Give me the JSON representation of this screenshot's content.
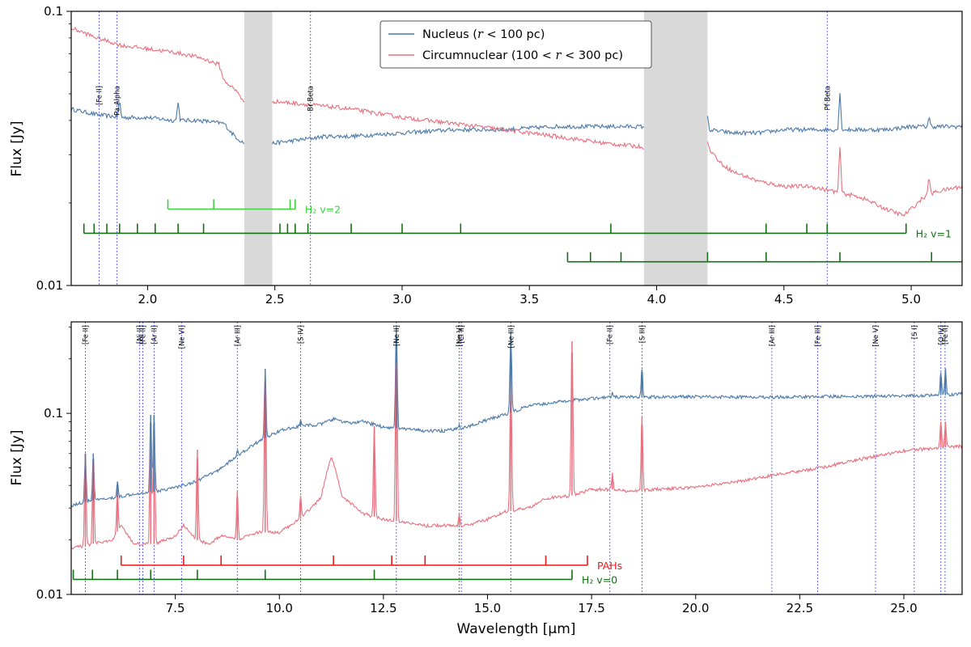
{
  "colors": {
    "nucleus": "#4a79aa",
    "circum": "#e8707f",
    "line_marker": "#3333ff",
    "h2_v2": "#3fd13f",
    "h2_v1": "#157015",
    "h2_v0": "#157015",
    "pahs": "#e81a1a",
    "shade": "#d9d9d9"
  },
  "chart_data": [
    {
      "type": "line",
      "panel": "top",
      "xlim": [
        1.7,
        5.2
      ],
      "ylim": [
        0.01,
        0.1
      ],
      "yscale": "log",
      "xlabel": "",
      "ylabel": "Flux [Jy]",
      "xticks": [
        2.0,
        2.5,
        3.0,
        3.5,
        4.0,
        4.5,
        5.0
      ],
      "xtick_labels": [
        "2.0",
        "2.5",
        "3.0",
        "3.5",
        "4.0",
        "4.5",
        "5.0"
      ],
      "yticks": [
        0.01,
        0.1
      ],
      "ytick_labels": [
        "0.01",
        "0.1"
      ],
      "legend": {
        "position": "top-center",
        "entries": [
          {
            "name_prefix": "Nucleus (",
            "name_math": "r",
            "name_suffix": " < 100 pc)",
            "series": "nucleus"
          },
          {
            "name_prefix": "Circumnuclear (100 < ",
            "name_math": "r",
            "name_suffix": " < 300 pc)",
            "series": "circum"
          }
        ]
      },
      "gaps": [
        [
          2.38,
          2.49
        ],
        [
          3.95,
          4.2
        ]
      ],
      "series": [
        {
          "name": "Nucleus",
          "key": "nucleus",
          "segments": [
            {
              "x": [
                1.7,
                1.8,
                1.9,
                2.0,
                2.1,
                2.2,
                2.3,
                2.33,
                2.36,
                2.38
              ],
              "y": [
                0.044,
                0.042,
                0.041,
                0.041,
                0.04,
                0.04,
                0.039,
                0.036,
                0.034,
                0.033
              ]
            },
            {
              "x": [
                2.49,
                2.6,
                2.7,
                2.8,
                3.0,
                3.2,
                3.4,
                3.6,
                3.8,
                3.95
              ],
              "y": [
                0.033,
                0.034,
                0.035,
                0.035,
                0.036,
                0.037,
                0.037,
                0.038,
                0.038,
                0.038
              ]
            },
            {
              "x": [
                4.2,
                4.3,
                4.4,
                4.5,
                4.6,
                4.7,
                4.8,
                4.9,
                5.0,
                5.1,
                5.2
              ],
              "y": [
                0.037,
                0.036,
                0.036,
                0.037,
                0.037,
                0.037,
                0.037,
                0.037,
                0.038,
                0.038,
                0.038
              ]
            }
          ],
          "peaks": [
            {
              "x": 1.89,
              "y": 0.047
            },
            {
              "x": 2.12,
              "y": 0.047
            },
            {
              "x": 4.2,
              "y": 0.041
            },
            {
              "x": 4.72,
              "y": 0.05
            },
            {
              "x": 5.07,
              "y": 0.041
            }
          ]
        },
        {
          "name": "Circumnuclear",
          "key": "circum",
          "segments": [
            {
              "x": [
                1.7,
                1.8,
                1.9,
                2.0,
                2.1,
                2.2,
                2.28,
                2.3,
                2.33,
                2.36,
                2.38
              ],
              "y": [
                0.087,
                0.08,
                0.075,
                0.073,
                0.071,
                0.068,
                0.064,
                0.056,
                0.053,
                0.05,
                0.046
              ]
            },
            {
              "x": [
                2.49,
                2.6,
                2.7,
                2.8,
                3.0,
                3.2,
                3.4,
                3.6,
                3.8,
                3.95
              ],
              "y": [
                0.047,
                0.046,
                0.045,
                0.044,
                0.041,
                0.039,
                0.037,
                0.035,
                0.033,
                0.032
              ]
            },
            {
              "x": [
                4.2,
                4.25,
                4.3,
                4.4,
                4.5,
                4.6,
                4.7,
                4.8,
                4.9,
                4.97,
                5.0,
                5.05,
                5.1,
                5.2
              ],
              "y": [
                0.032,
                0.028,
                0.026,
                0.024,
                0.023,
                0.023,
                0.022,
                0.021,
                0.019,
                0.018,
                0.019,
                0.021,
                0.022,
                0.023
              ]
            }
          ],
          "peaks": [
            {
              "x": 4.2,
              "y": 0.033
            },
            {
              "x": 4.72,
              "y": 0.032
            },
            {
              "x": 5.07,
              "y": 0.025
            }
          ]
        }
      ],
      "line_markers": [
        {
          "x": 1.81,
          "label": "[Fe II]"
        },
        {
          "x": 1.88,
          "label": "Pa Alpha"
        },
        {
          "x": 2.64,
          "label": "Br Beta"
        },
        {
          "x": 4.67,
          "label": "Pf Beta"
        }
      ],
      "ladders": [
        {
          "label": "H₂ v=2",
          "color_key": "h2_v2",
          "level": 0.019,
          "x_start": 2.08,
          "x_end": 2.58,
          "ticks": [
            2.08,
            2.26,
            2.56,
            2.58
          ]
        },
        {
          "label": "H₂ v=1",
          "color_key": "h2_v1",
          "level": 0.0155,
          "x_start": 1.75,
          "x_end": 4.98,
          "ticks": [
            1.75,
            1.79,
            1.84,
            1.89,
            1.96,
            2.03,
            2.12,
            2.22,
            2.52,
            2.55,
            2.58,
            2.63,
            2.8,
            3.0,
            3.23,
            3.82,
            4.43,
            4.59,
            4.67,
            4.98
          ]
        },
        {
          "label": "",
          "color_key": "h2_v1",
          "level": 0.0122,
          "x_start": 3.65,
          "x_end": 5.2,
          "ticks": [
            3.65,
            3.74,
            3.86,
            4.2,
            4.43,
            4.72,
            5.08
          ]
        }
      ]
    },
    {
      "type": "line",
      "panel": "bottom",
      "xlim": [
        5.0,
        26.4
      ],
      "ylim": [
        0.01,
        0.32
      ],
      "yscale": "log",
      "xlabel": "Wavelength [μm]",
      "ylabel": "Flux [Jy]",
      "xticks": [
        7.5,
        10.0,
        12.5,
        15.0,
        17.5,
        20.0,
        22.5,
        25.0
      ],
      "xtick_labels": [
        "7.5",
        "10.0",
        "12.5",
        "15.0",
        "17.5",
        "20.0",
        "22.5",
        "25.0"
      ],
      "yticks": [
        0.01,
        0.1
      ],
      "ytick_labels": [
        "0.01",
        "0.1"
      ],
      "series": [
        {
          "name": "Nucleus",
          "key": "nucleus",
          "x": [
            5.0,
            5.5,
            6.0,
            6.5,
            7.0,
            7.5,
            8.0,
            8.5,
            9.0,
            9.5,
            10.0,
            10.5,
            11.0,
            11.3,
            11.7,
            12.0,
            12.5,
            13.0,
            13.5,
            14.0,
            14.5,
            15.0,
            15.5,
            16.0,
            17.0,
            18.0,
            19.0,
            20.0,
            21.0,
            22.0,
            23.0,
            24.0,
            25.0,
            26.0,
            26.4
          ],
          "y": [
            0.031,
            0.033,
            0.034,
            0.036,
            0.037,
            0.039,
            0.042,
            0.048,
            0.058,
            0.07,
            0.08,
            0.085,
            0.087,
            0.093,
            0.088,
            0.09,
            0.084,
            0.082,
            0.08,
            0.08,
            0.084,
            0.092,
            0.1,
            0.11,
            0.118,
            0.123,
            0.123,
            0.124,
            0.123,
            0.123,
            0.124,
            0.124,
            0.125,
            0.126,
            0.128
          ]
        },
        {
          "name": "Circumnuclear",
          "key": "circum",
          "x": [
            5.0,
            5.5,
            6.0,
            6.2,
            6.5,
            7.0,
            7.5,
            7.7,
            8.0,
            8.3,
            8.6,
            9.0,
            9.5,
            10.0,
            10.5,
            11.0,
            11.25,
            11.5,
            12.0,
            12.5,
            13.0,
            13.5,
            14.0,
            14.5,
            15.0,
            15.5,
            16.0,
            16.4,
            17.0,
            17.5,
            18.0,
            18.5,
            19.0,
            20.0,
            21.0,
            22.0,
            23.0,
            24.0,
            25.0,
            26.0,
            26.4
          ],
          "y": [
            0.018,
            0.019,
            0.02,
            0.024,
            0.019,
            0.019,
            0.021,
            0.024,
            0.02,
            0.019,
            0.021,
            0.02,
            0.022,
            0.022,
            0.026,
            0.034,
            0.058,
            0.035,
            0.028,
            0.026,
            0.025,
            0.024,
            0.024,
            0.024,
            0.026,
            0.029,
            0.03,
            0.034,
            0.035,
            0.038,
            0.038,
            0.037,
            0.038,
            0.039,
            0.042,
            0.046,
            0.05,
            0.056,
            0.062,
            0.065,
            0.066
          ]
        }
      ],
      "spikes": [
        {
          "x": 5.34,
          "nucleus": 0.06,
          "circum": 0.06
        },
        {
          "x": 5.53,
          "nucleus": 0.06,
          "circum": 0.06
        },
        {
          "x": 6.11,
          "nucleus": 0.042,
          "circum": 0.038
        },
        {
          "x": 6.91,
          "nucleus": 0.098,
          "circum": 0.098
        },
        {
          "x": 6.99,
          "nucleus": 0.098,
          "circum": 0.097
        },
        {
          "x": 8.03,
          "nucleus": 0.043,
          "circum": 0.063
        },
        {
          "x": 8.99,
          "nucleus": 0.062,
          "circum": 0.037
        },
        {
          "x": 9.66,
          "nucleus": 0.175,
          "circum": 0.175
        },
        {
          "x": 10.51,
          "nucleus": 0.092,
          "circum": 0.035
        },
        {
          "x": 12.28,
          "nucleus": 0.088,
          "circum": 0.085
        },
        {
          "x": 12.81,
          "nucleus": 0.3,
          "circum": 0.22
        },
        {
          "x": 14.32,
          "nucleus": 0.088,
          "circum": 0.028
        },
        {
          "x": 15.56,
          "nucleus": 0.28,
          "circum": 0.15
        },
        {
          "x": 17.03,
          "nucleus": 0.118,
          "circum": 0.25
        },
        {
          "x": 18.0,
          "nucleus": 0.132,
          "circum": 0.047
        },
        {
          "x": 18.71,
          "nucleus": 0.175,
          "circum": 0.095
        },
        {
          "x": 25.89,
          "nucleus": 0.168,
          "circum": 0.09
        },
        {
          "x": 26.0,
          "nucleus": 0.175,
          "circum": 0.09
        }
      ],
      "line_markers": [
        {
          "x": 5.34,
          "label": "[Fe II]"
        },
        {
          "x": 6.64,
          "label": "[Ni II]"
        },
        {
          "x": 6.72,
          "label": "[Fe II]"
        },
        {
          "x": 6.99,
          "label": "[Ar II]"
        },
        {
          "x": 7.65,
          "label": "[Ne VI]"
        },
        {
          "x": 8.99,
          "label": "[Ar III]"
        },
        {
          "x": 10.51,
          "label": "[S IV]"
        },
        {
          "x": 12.81,
          "label": "[Ne II]"
        },
        {
          "x": 14.32,
          "label": "[Ne V]"
        },
        {
          "x": 14.37,
          "label": "[Cl II]"
        },
        {
          "x": 15.56,
          "label": "[Ne III]"
        },
        {
          "x": 17.94,
          "label": "[Fe II]"
        },
        {
          "x": 18.71,
          "label": "[S III]"
        },
        {
          "x": 21.83,
          "label": "[Ar III]"
        },
        {
          "x": 22.93,
          "label": "[Fe III]"
        },
        {
          "x": 24.32,
          "label": "[Ne V]"
        },
        {
          "x": 25.25,
          "label": "[S I]"
        },
        {
          "x": 25.89,
          "label": "[O IV]"
        },
        {
          "x": 25.99,
          "label": "[Fe II]"
        }
      ],
      "ladders": [
        {
          "label": "PAHs",
          "color_key": "pahs",
          "level": 0.0145,
          "x_start": 6.2,
          "x_end": 17.4,
          "ticks": [
            6.2,
            7.7,
            8.6,
            11.3,
            12.7,
            13.5,
            16.4,
            17.4
          ]
        },
        {
          "label": "H₂ v=0",
          "color_key": "h2_v0",
          "level": 0.0121,
          "x_start": 5.05,
          "x_end": 17.03,
          "ticks": [
            5.05,
            5.51,
            6.11,
            6.91,
            8.03,
            9.66,
            12.28,
            17.03
          ]
        }
      ]
    }
  ]
}
